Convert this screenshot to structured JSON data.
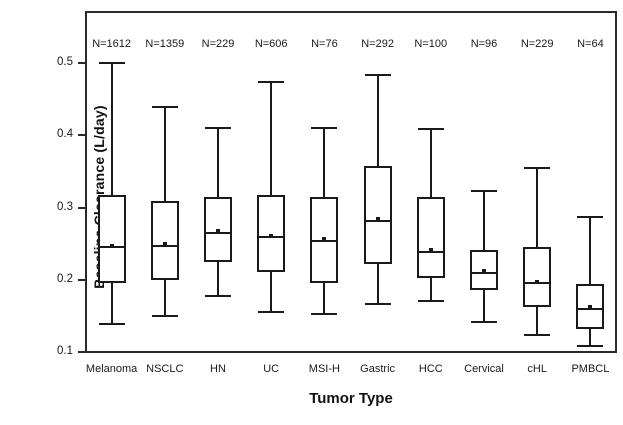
{
  "chart_data": {
    "type": "boxplot",
    "xlabel": "Tumor Type",
    "ylabel": "Baseline Clearance (L/day)",
    "ylim": [
      0.0986,
      0.572
    ],
    "y_ticks": [
      0.1,
      0.2,
      0.3,
      0.4,
      0.5
    ],
    "grid": false,
    "legend": "none",
    "line_color": "#1a1a1a",
    "frame_color": "#2b2b2b",
    "background_color": "#ffffff",
    "categories": [
      "Melanoma",
      "NSCLC",
      "HN",
      "UC",
      "MSI-H",
      "Gastric",
      "HCC",
      "Cervical",
      "cHL",
      "PMBCL"
    ],
    "n_labels": [
      "N=1612",
      "N=1359",
      "N=229",
      "N=606",
      "N=76",
      "N=292",
      "N=100",
      "N=96",
      "N=229",
      "N=64"
    ],
    "boxes": [
      {
        "category": "Melanoma",
        "n_label": "N=1612",
        "whisker_low": 0.139,
        "q1": 0.195,
        "median": 0.245,
        "mean": 0.247,
        "q3": 0.317,
        "whisker_high": 0.5
      },
      {
        "category": "NSCLC",
        "n_label": "N=1359",
        "whisker_low": 0.15,
        "q1": 0.199,
        "median": 0.247,
        "mean": 0.249,
        "q3": 0.309,
        "whisker_high": 0.439
      },
      {
        "category": "HN",
        "n_label": "N=229",
        "whisker_low": 0.178,
        "q1": 0.224,
        "median": 0.265,
        "mean": 0.267,
        "q3": 0.315,
        "whisker_high": 0.41
      },
      {
        "category": "UC",
        "n_label": "N=606",
        "whisker_low": 0.155,
        "q1": 0.211,
        "median": 0.259,
        "mean": 0.261,
        "q3": 0.317,
        "whisker_high": 0.474
      },
      {
        "category": "MSI-H",
        "n_label": "N=76",
        "whisker_low": 0.152,
        "q1": 0.196,
        "median": 0.254,
        "mean": 0.256,
        "q3": 0.314,
        "whisker_high": 0.41
      },
      {
        "category": "Gastric",
        "n_label": "N=292",
        "whisker_low": 0.167,
        "q1": 0.222,
        "median": 0.282,
        "mean": 0.284,
        "q3": 0.357,
        "whisker_high": 0.483
      },
      {
        "category": "HCC",
        "n_label": "N=100",
        "whisker_low": 0.171,
        "q1": 0.202,
        "median": 0.239,
        "mean": 0.241,
        "q3": 0.315,
        "whisker_high": 0.408
      },
      {
        "category": "Cervical",
        "n_label": "N=96",
        "whisker_low": 0.141,
        "q1": 0.186,
        "median": 0.21,
        "mean": 0.212,
        "q3": 0.241,
        "whisker_high": 0.323
      },
      {
        "category": "cHL",
        "n_label": "N=229",
        "whisker_low": 0.124,
        "q1": 0.162,
        "median": 0.195,
        "mean": 0.197,
        "q3": 0.245,
        "whisker_high": 0.354
      },
      {
        "category": "PMBCL",
        "n_label": "N=64",
        "whisker_low": 0.108,
        "q1": 0.132,
        "median": 0.16,
        "mean": 0.162,
        "q3": 0.194,
        "whisker_high": 0.287
      }
    ]
  }
}
